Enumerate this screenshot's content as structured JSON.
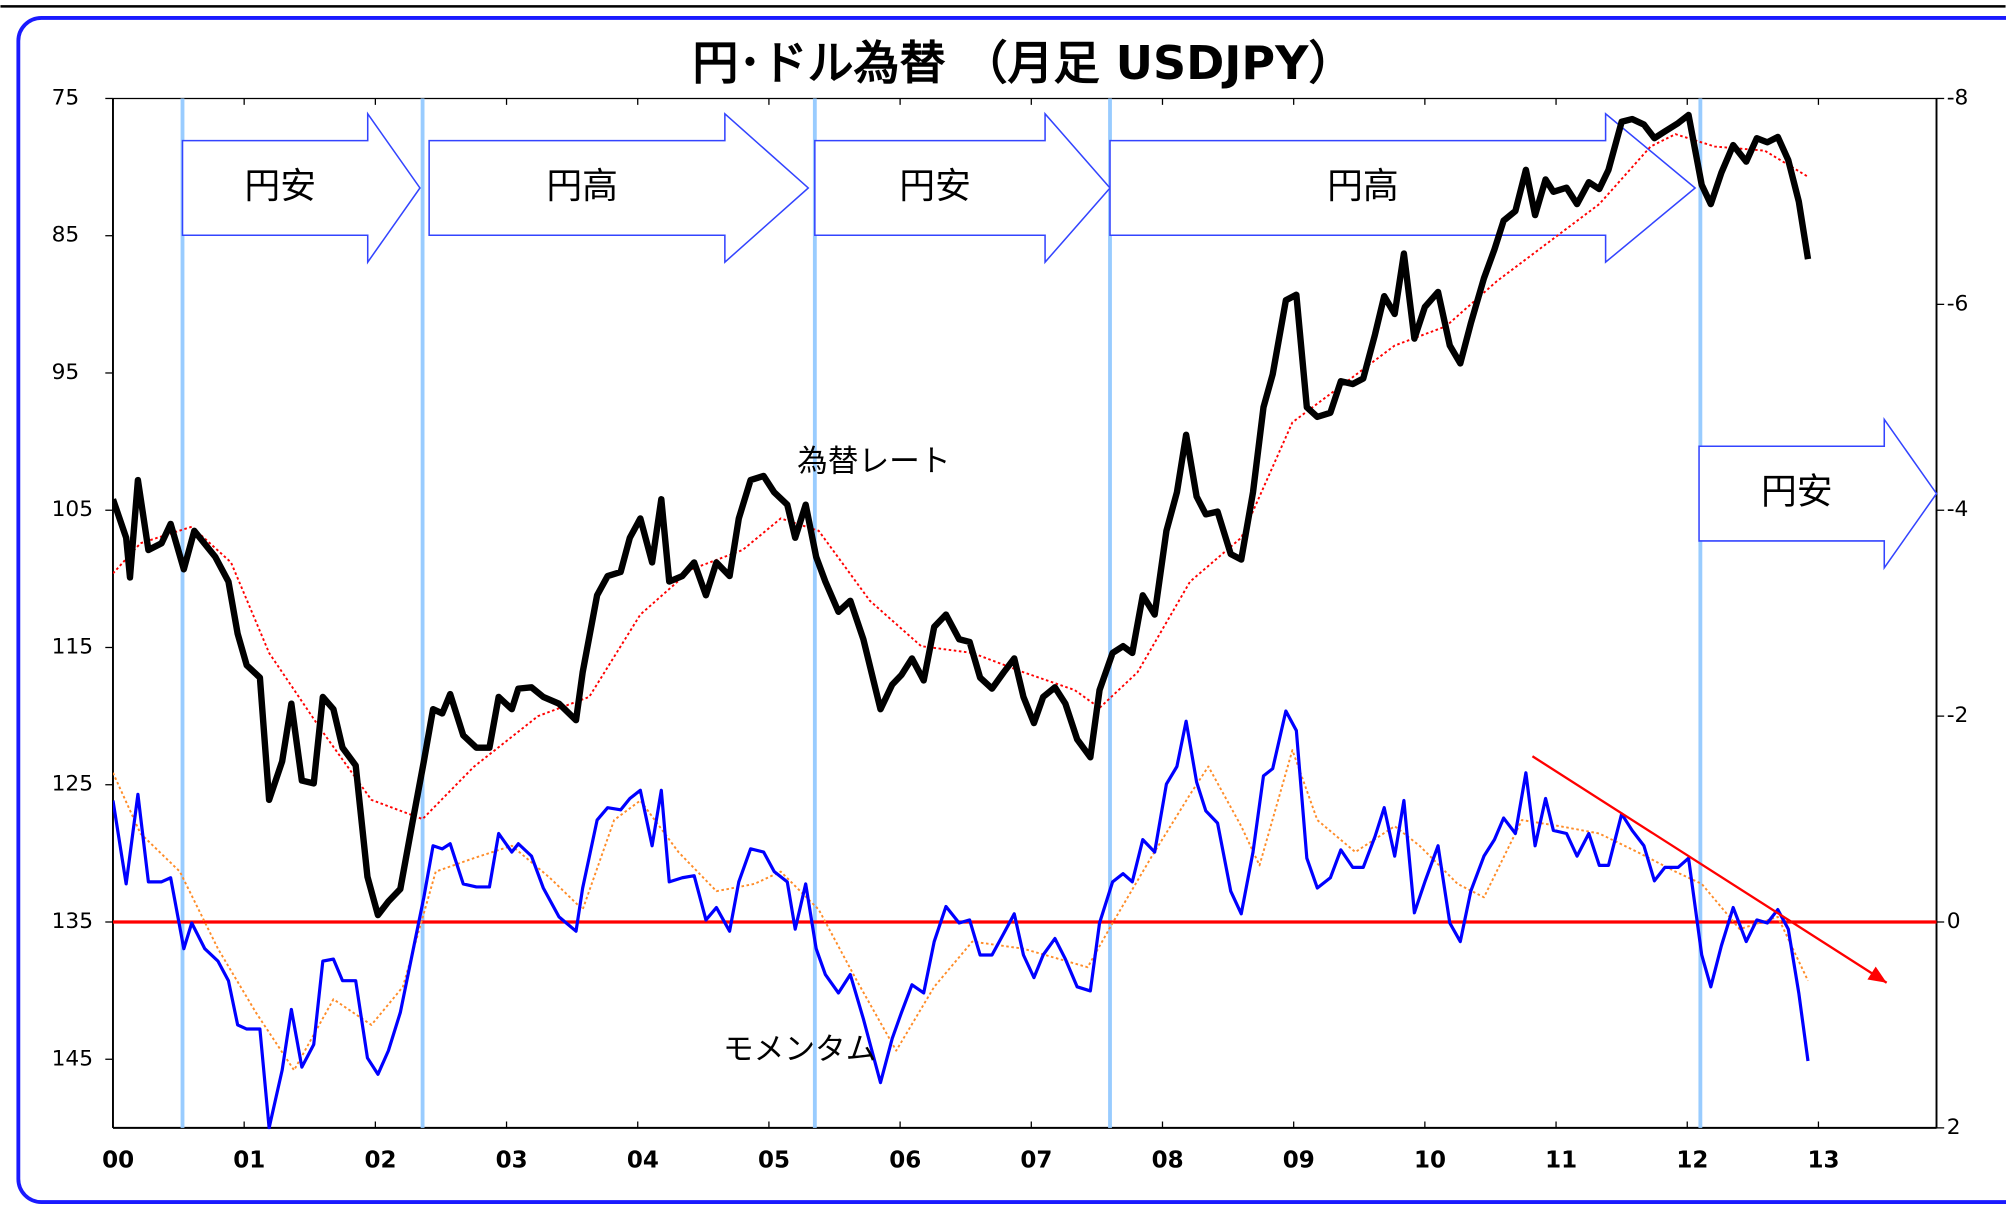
{
  "chart_data": {
    "type": "line",
    "title": "円･ドル為替 （月足 USDJPY）",
    "xlim": [
      0,
      13.9
    ],
    "xticks": [
      {
        "value": 0,
        "label": "00"
      },
      {
        "value": 1,
        "label": "01"
      },
      {
        "value": 2,
        "label": "02"
      },
      {
        "value": 3,
        "label": "03"
      },
      {
        "value": 4,
        "label": "04"
      },
      {
        "value": 5,
        "label": "05"
      },
      {
        "value": 6,
        "label": "06"
      },
      {
        "value": 7,
        "label": "07"
      },
      {
        "value": 8,
        "label": "08"
      },
      {
        "value": 9,
        "label": "09"
      },
      {
        "value": 10,
        "label": "10"
      },
      {
        "value": 11,
        "label": "11"
      },
      {
        "value": 12,
        "label": "12"
      },
      {
        "value": 13,
        "label": "13"
      }
    ],
    "ylim": [
      75,
      150
    ],
    "y_inverted": true,
    "yticks": [
      75,
      85,
      95,
      105,
      115,
      125,
      135,
      145
    ],
    "y2lim": [
      -8,
      2
    ],
    "y2_inverted": true,
    "y2ticks": [
      -8,
      -6,
      -4,
      -2,
      0,
      2
    ],
    "series": [
      {
        "name": "為替レート",
        "color": "#000000",
        "width": 5,
        "dash": "none",
        "x": [
          0,
          0.1,
          0.13,
          0.19,
          0.27,
          0.37,
          0.44,
          0.54,
          0.62,
          0.78,
          0.88,
          0.95,
          1.02,
          1.12,
          1.19,
          1.29,
          1.36,
          1.44,
          1.53,
          1.6,
          1.68,
          1.75,
          1.85,
          1.94,
          2.02,
          2.1,
          2.19,
          2.28,
          2.37,
          2.44,
          2.51,
          2.57,
          2.67,
          2.77,
          2.87,
          2.94,
          3.04,
          3.09,
          3.19,
          3.28,
          3.4,
          3.53,
          3.58,
          3.69,
          3.77,
          3.87,
          3.94,
          4.02,
          4.11,
          4.18,
          4.24,
          4.34,
          4.43,
          4.52,
          4.6,
          4.7,
          4.77,
          4.86,
          4.96,
          5.04,
          5.14,
          5.2,
          5.28,
          5.36,
          5.43,
          5.53,
          5.62,
          5.72,
          5.85,
          5.94,
          6.01,
          6.09,
          6.18,
          6.26,
          6.35,
          6.45,
          6.53,
          6.61,
          6.7,
          6.79,
          6.87,
          6.94,
          7.02,
          7.09,
          7.18,
          7.26,
          7.35,
          7.45,
          7.52,
          7.62,
          7.7,
          7.77,
          7.85,
          7.94,
          8.03,
          8.11,
          8.18,
          8.26,
          8.33,
          8.42,
          8.52,
          8.6,
          8.69,
          8.77,
          8.84,
          8.94,
          9.02,
          9.1,
          9.18,
          9.28,
          9.36,
          9.45,
          9.53,
          9.62,
          9.69,
          9.77,
          9.84,
          9.92,
          10.0,
          10.1,
          10.19,
          10.27,
          10.35,
          10.45,
          10.53,
          10.6,
          10.69,
          10.77,
          10.84,
          10.92,
          10.98,
          11.08,
          11.16,
          11.25,
          11.33,
          11.4,
          11.5,
          11.58,
          11.67,
          11.75,
          11.83,
          11.93,
          12.01,
          12.11,
          12.18,
          12.26,
          12.35,
          12.45,
          12.53,
          12.61,
          12.69,
          12.77,
          12.85,
          12.92
        ],
        "values": [
          104.2,
          107.0,
          109.9,
          102.8,
          107.9,
          107.4,
          106.0,
          109.3,
          106.5,
          108.4,
          110.2,
          114.0,
          116.3,
          117.2,
          126.1,
          123.3,
          119.1,
          124.7,
          124.9,
          118.6,
          119.5,
          122.3,
          123.6,
          131.7,
          134.5,
          133.5,
          132.6,
          127.9,
          123.3,
          119.5,
          119.8,
          118.4,
          121.4,
          122.3,
          122.3,
          118.6,
          119.5,
          118.0,
          117.9,
          118.6,
          119.1,
          120.3,
          116.8,
          111.2,
          109.8,
          109.5,
          107.0,
          105.6,
          108.8,
          104.2,
          110.2,
          109.8,
          108.8,
          111.2,
          108.8,
          109.8,
          105.6,
          102.8,
          102.5,
          103.7,
          104.6,
          107.0,
          104.6,
          108.4,
          110.2,
          112.4,
          111.6,
          114.4,
          119.5,
          117.7,
          117.0,
          115.8,
          117.4,
          113.5,
          112.6,
          114.4,
          114.6,
          117.2,
          118.0,
          116.8,
          115.8,
          118.6,
          120.5,
          118.6,
          117.9,
          119.1,
          121.7,
          123.0,
          118.1,
          115.4,
          114.9,
          115.4,
          111.2,
          112.6,
          106.5,
          103.7,
          99.5,
          104.0,
          105.3,
          105.1,
          108.2,
          108.6,
          103.7,
          97.5,
          95.1,
          89.7,
          89.3,
          97.5,
          98.2,
          97.9,
          95.6,
          95.8,
          95.4,
          92.2,
          89.4,
          90.7,
          86.3,
          92.5,
          90.2,
          89.1,
          93.0,
          94.3,
          91.4,
          88.1,
          86.0,
          83.9,
          83.2,
          80.2,
          83.5,
          80.9,
          81.8,
          81.5,
          82.7,
          81.1,
          81.6,
          80.2,
          76.7,
          76.5,
          76.9,
          77.9,
          77.4,
          76.8,
          76.2,
          81.3,
          82.7,
          80.4,
          78.4,
          79.6,
          77.9,
          78.2,
          77.8,
          79.5,
          82.5,
          86.7
        ]
      },
      {
        "color": "#ff0000",
        "width": 1.5,
        "dash": "2 2",
        "x": [
          0,
          0.21,
          0.6,
          0.9,
          1.19,
          1.58,
          1.97,
          2.36,
          2.75,
          3.24,
          3.63,
          4.02,
          4.41,
          4.8,
          5.09,
          5.38,
          5.77,
          6.16,
          6.55,
          6.94,
          7.33,
          7.52,
          7.81,
          8.21,
          8.6,
          8.99,
          9.38,
          9.77,
          10.16,
          10.55,
          10.94,
          11.33,
          11.72,
          11.91,
          12.21,
          12.59,
          12.92
        ],
        "values": [
          109.6,
          107.4,
          106.2,
          108.8,
          115.4,
          120.9,
          126.1,
          127.5,
          123.7,
          120.0,
          118.6,
          112.6,
          109.3,
          107.9,
          105.6,
          106.5,
          111.6,
          114.9,
          115.4,
          116.8,
          118.1,
          119.4,
          116.8,
          110.2,
          107.0,
          98.6,
          95.8,
          93.0,
          91.6,
          88.3,
          85.5,
          82.7,
          78.5,
          77.6,
          78.5,
          78.8,
          80.7
        ]
      },
      {
        "name": "モメンタム",
        "color": "#0000ff",
        "width": 2.5,
        "dash": "none",
        "axis": "y2",
        "x": [
          0,
          0.1,
          0.19,
          0.27,
          0.37,
          0.44,
          0.54,
          0.6,
          0.7,
          0.8,
          0.88,
          0.95,
          1.02,
          1.12,
          1.19,
          1.29,
          1.36,
          1.44,
          1.53,
          1.6,
          1.68,
          1.75,
          1.85,
          1.94,
          2.02,
          2.1,
          2.19,
          2.28,
          2.37,
          2.44,
          2.51,
          2.57,
          2.67,
          2.77,
          2.87,
          2.94,
          3.04,
          3.09,
          3.19,
          3.28,
          3.4,
          3.53,
          3.58,
          3.69,
          3.77,
          3.87,
          3.94,
          4.02,
          4.11,
          4.18,
          4.24,
          4.34,
          4.43,
          4.52,
          4.6,
          4.7,
          4.77,
          4.86,
          4.96,
          5.04,
          5.14,
          5.2,
          5.28,
          5.36,
          5.43,
          5.53,
          5.62,
          5.72,
          5.85,
          5.94,
          6.01,
          6.09,
          6.18,
          6.26,
          6.35,
          6.45,
          6.53,
          6.61,
          6.7,
          6.79,
          6.87,
          6.94,
          7.02,
          7.09,
          7.18,
          7.26,
          7.35,
          7.45,
          7.52,
          7.62,
          7.7,
          7.77,
          7.85,
          7.94,
          8.03,
          8.11,
          8.18,
          8.26,
          8.33,
          8.42,
          8.52,
          8.6,
          8.69,
          8.77,
          8.84,
          8.94,
          9.02,
          9.1,
          9.18,
          9.28,
          9.36,
          9.45,
          9.53,
          9.62,
          9.69,
          9.77,
          9.84,
          9.92,
          10.0,
          10.1,
          10.19,
          10.27,
          10.35,
          10.45,
          10.53,
          10.6,
          10.69,
          10.77,
          10.84,
          10.92,
          10.98,
          11.08,
          11.16,
          11.25,
          11.33,
          11.4,
          11.5,
          11.58,
          11.67,
          11.75,
          11.83,
          11.93,
          12.01,
          12.11,
          12.18,
          12.26,
          12.35,
          12.45,
          12.53,
          12.61,
          12.69,
          12.77,
          12.85,
          12.92
        ],
        "values": [
          -1.18,
          -0.37,
          -1.24,
          -0.39,
          -0.39,
          -0.43,
          0.26,
          0.01,
          0.26,
          0.38,
          0.57,
          1.0,
          1.04,
          1.04,
          2.0,
          1.44,
          0.85,
          1.41,
          1.19,
          0.38,
          0.36,
          0.57,
          0.57,
          1.32,
          1.48,
          1.25,
          0.88,
          0.32,
          -0.24,
          -0.74,
          -0.71,
          -0.76,
          -0.37,
          -0.34,
          -0.34,
          -0.86,
          -0.68,
          -0.76,
          -0.64,
          -0.33,
          -0.05,
          0.09,
          -0.33,
          -0.99,
          -1.11,
          -1.09,
          -1.2,
          -1.28,
          -0.74,
          -1.28,
          -0.39,
          -0.43,
          -0.45,
          -0.02,
          -0.14,
          0.09,
          -0.39,
          -0.71,
          -0.68,
          -0.49,
          -0.39,
          0.07,
          -0.37,
          0.26,
          0.51,
          0.69,
          0.51,
          0.94,
          1.56,
          1.13,
          0.88,
          0.61,
          0.69,
          0.19,
          -0.15,
          0.01,
          -0.02,
          0.32,
          0.32,
          0.11,
          -0.08,
          0.32,
          0.54,
          0.32,
          0.16,
          0.36,
          0.63,
          0.67,
          0.01,
          -0.39,
          -0.47,
          -0.39,
          -0.8,
          -0.68,
          -1.34,
          -1.51,
          -1.95,
          -1.36,
          -1.08,
          -0.96,
          -0.3,
          -0.08,
          -0.68,
          -1.42,
          -1.49,
          -2.05,
          -1.86,
          -0.62,
          -0.33,
          -0.43,
          -0.7,
          -0.53,
          -0.53,
          -0.83,
          -1.11,
          -0.64,
          -1.18,
          -0.09,
          -0.39,
          -0.74,
          0.01,
          0.19,
          -0.3,
          -0.64,
          -0.8,
          -1.01,
          -0.86,
          -1.45,
          -0.74,
          -1.2,
          -0.89,
          -0.86,
          -0.64,
          -0.86,
          -0.55,
          -0.55,
          -1.05,
          -0.89,
          -0.74,
          -0.4,
          -0.53,
          -0.53,
          -0.62,
          0.32,
          0.63,
          0.23,
          -0.14,
          0.19,
          -0.02,
          0.01,
          -0.12,
          0.07,
          0.69,
          1.35
        ]
      },
      {
        "color": "#ff8c28",
        "width": 1.5,
        "dash": "2 2",
        "axis": "y2",
        "x": [
          0,
          0.21,
          0.51,
          0.8,
          1.09,
          1.38,
          1.68,
          1.97,
          2.21,
          2.46,
          2.75,
          3.04,
          3.33,
          3.58,
          3.82,
          4.02,
          4.31,
          4.6,
          4.89,
          5.09,
          5.38,
          5.67,
          5.97,
          6.26,
          6.55,
          6.94,
          7.43,
          7.62,
          7.91,
          8.21,
          8.35,
          8.6,
          8.74,
          8.99,
          9.18,
          9.47,
          9.77,
          9.96,
          10.25,
          10.45,
          10.74,
          11.03,
          11.33,
          11.62,
          11.91,
          12.11,
          12.4,
          12.69,
          12.92
        ],
        "values": [
          -1.45,
          -0.86,
          -0.49,
          0.26,
          0.88,
          1.44,
          0.75,
          1.0,
          0.63,
          -0.49,
          -0.62,
          -0.74,
          -0.43,
          -0.12,
          -0.99,
          -1.18,
          -0.68,
          -0.3,
          -0.37,
          -0.49,
          -0.12,
          0.57,
          1.25,
          0.63,
          0.19,
          0.26,
          0.44,
          0.01,
          -0.62,
          -1.24,
          -1.51,
          -0.93,
          -0.55,
          -1.67,
          -0.99,
          -0.68,
          -0.93,
          -0.74,
          -0.37,
          -0.24,
          -0.99,
          -0.93,
          -0.86,
          -0.68,
          -0.49,
          -0.37,
          0.07,
          -0.05,
          0.57
        ]
      }
    ],
    "reference_line": {
      "axis": "y2",
      "value": 0,
      "color": "#ff0000"
    },
    "trend_arrow": {
      "axis": "y2",
      "x": [
        10.82,
        13.52
      ],
      "values": [
        -1.61,
        0.59
      ],
      "color": "#ff0000"
    },
    "phase_lines": {
      "x": [
        0.53,
        2.36,
        5.35,
        7.6,
        12.1
      ],
      "color": "#99ccff"
    },
    "phases": [
      {
        "label": "円安",
        "from": 0.53,
        "to": 2.34
      },
      {
        "label": "円高",
        "from": 2.41,
        "to": 5.3
      },
      {
        "label": "円安",
        "from": 5.35,
        "to": 7.6
      },
      {
        "label": "円高",
        "from": 7.6,
        "to": 12.06
      },
      {
        "label": "円安",
        "from": 12.09,
        "to": 13.9
      }
    ]
  }
}
